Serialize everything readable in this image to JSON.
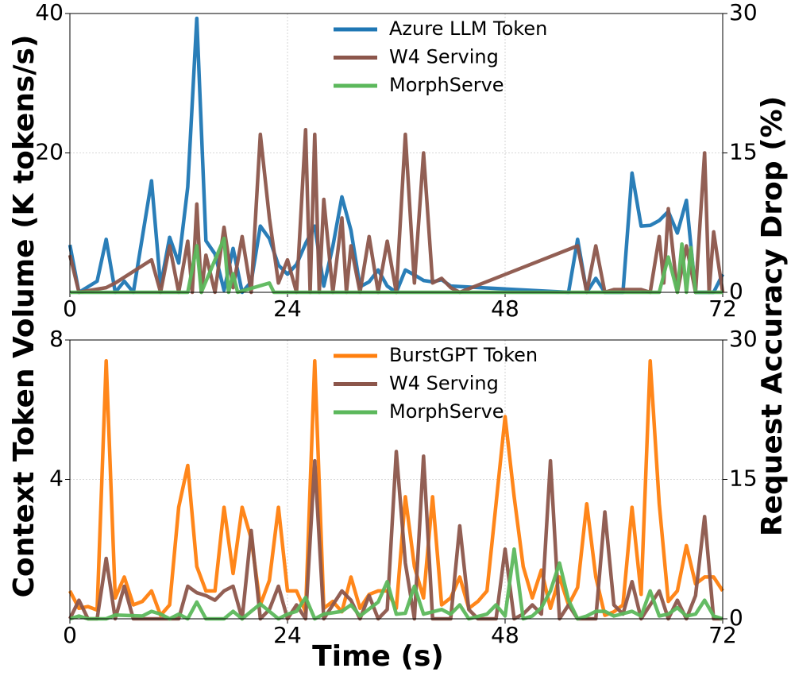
{
  "chart_data": [
    {
      "type": "line",
      "ylabel": "Context Token Volume (K tokens/s)",
      "y2label": "Request Accuracy Drop (%)",
      "xlim": [
        0,
        72
      ],
      "xticks": [
        0,
        24,
        48,
        72
      ],
      "ylim": [
        0,
        40
      ],
      "yticks": [
        20,
        40
      ],
      "y2lim": [
        0,
        30
      ],
      "y2ticks": [
        0,
        15,
        30
      ],
      "grid": true,
      "legend": "upper center",
      "series": [
        {
          "name": "Azure LLM Token",
          "color": "#1f77b4",
          "axis": "y",
          "x": [
            0,
            1,
            3,
            4,
            5,
            6,
            7,
            9,
            10,
            11,
            12,
            13,
            14,
            15,
            16,
            17,
            18,
            19,
            20,
            21,
            22,
            23,
            24,
            25,
            26,
            27,
            28,
            29,
            30,
            31,
            32,
            33,
            34,
            35,
            36,
            37,
            38,
            39,
            40,
            41,
            42,
            55,
            56,
            57,
            58,
            59,
            60,
            61,
            62,
            63,
            64,
            65,
            66,
            67,
            68,
            69,
            70,
            71,
            72
          ],
          "values": [
            6.8,
            0,
            1.6,
            7.6,
            0,
            1.6,
            0,
            16,
            0.9,
            7.9,
            4.2,
            15.1,
            39.3,
            7.4,
            5.5,
            0.3,
            6.3,
            0,
            1.5,
            9.5,
            7.7,
            3.9,
            2.6,
            4,
            7,
            9.5,
            0.9,
            6.6,
            13.7,
            8.9,
            0.8,
            1.5,
            3.2,
            0.9,
            0,
            3.2,
            2.5,
            1.7,
            1.5,
            1.8,
            0.9,
            0,
            7.6,
            0,
            2,
            0,
            0,
            0,
            17.1,
            9.5,
            9.6,
            10.3,
            11.6,
            8.5,
            13.2,
            0,
            0,
            0,
            2.6
          ]
        },
        {
          "name": "W4 Serving",
          "color": "#8c564b",
          "axis": "y2",
          "x": [
            0,
            1,
            4,
            5,
            9,
            10,
            11,
            12,
            13,
            13.5,
            14,
            14.5,
            15,
            16,
            17,
            18,
            19,
            20,
            21,
            22,
            23,
            24,
            25,
            26,
            26.5,
            27,
            27.5,
            28,
            29,
            30,
            30.5,
            31,
            32,
            33,
            34,
            35,
            36,
            37,
            38,
            39,
            40,
            41,
            42,
            43,
            56,
            57,
            58,
            59,
            60,
            63,
            64,
            65,
            65.5,
            66,
            67,
            68,
            69,
            70,
            70.5,
            71,
            72
          ],
          "values": [
            4,
            0,
            0.5,
            1,
            3.5,
            0,
            5,
            0,
            5.5,
            0,
            9.5,
            0,
            4,
            0,
            7,
            0.5,
            6,
            0,
            17,
            8,
            1,
            3.5,
            0,
            17.5,
            0,
            17,
            0,
            10,
            0,
            8,
            0,
            5,
            0,
            6,
            0,
            5.5,
            0,
            17,
            1,
            15,
            1,
            1.5,
            0.5,
            0,
            5,
            0,
            5,
            0,
            0.3,
            0.3,
            0,
            6,
            1,
            9,
            0,
            5,
            0,
            15,
            0,
            6.5,
            0
          ]
        },
        {
          "name": "MorphServe",
          "color": "#5cb85c",
          "axis": "y2",
          "x": [
            0,
            13,
            14,
            14.5,
            17,
            17.5,
            18,
            18.5,
            22,
            22.5,
            65,
            66,
            67,
            67.5,
            68,
            68.5,
            69,
            72
          ],
          "values": [
            0,
            0,
            5,
            0,
            5.8,
            0,
            2,
            0,
            1,
            0,
            0,
            3.8,
            0,
            5.2,
            0,
            4.8,
            0,
            0
          ]
        }
      ]
    },
    {
      "type": "line",
      "xlabel": "Time (s)",
      "xlim": [
        0,
        72
      ],
      "xticks": [
        0,
        24,
        48,
        72
      ],
      "ylim": [
        0,
        8
      ],
      "yticks": [
        4,
        8
      ],
      "y2lim": [
        0,
        30
      ],
      "y2ticks": [
        0,
        15,
        30
      ],
      "grid": true,
      "legend": "upper center",
      "series": [
        {
          "name": "BurstGPT Token",
          "color": "#ff7f0e",
          "axis": "y",
          "x": [
            0,
            1,
            2,
            3,
            4,
            5,
            6,
            7,
            8,
            9,
            10,
            11,
            12,
            13,
            14,
            15,
            16,
            17,
            18,
            19,
            20,
            21,
            22,
            23,
            24,
            25,
            26,
            27,
            28,
            29,
            30,
            31,
            32,
            33,
            34,
            35,
            36,
            37,
            38,
            39,
            40,
            41,
            42,
            43,
            44,
            45,
            46,
            47,
            48,
            49,
            50,
            51,
            52,
            53,
            54,
            55,
            56,
            57,
            58,
            59,
            60,
            61,
            62,
            63,
            64,
            65,
            66,
            67,
            68,
            69,
            70,
            71,
            72
          ],
          "values": [
            0.8,
            0.3,
            0.35,
            0.25,
            7.4,
            0.6,
            1.2,
            0.4,
            0.5,
            0.8,
            0.1,
            0.4,
            3.2,
            4.4,
            1.5,
            0.8,
            0.8,
            3.2,
            1.3,
            3.2,
            2.3,
            0.4,
            1.1,
            3.2,
            0.8,
            0.8,
            0.2,
            7.4,
            0.3,
            0.5,
            0.2,
            1.2,
            0.3,
            0.7,
            0.8,
            0.8,
            0.3,
            3.5,
            1.5,
            0.6,
            3.5,
            0.4,
            0.6,
            1.2,
            0.3,
            0.5,
            0.8,
            3.3,
            5.8,
            3.5,
            1.5,
            0.6,
            1.4,
            0.3,
            1.2,
            0.4,
            0.9,
            3.3,
            1.2,
            0.1,
            0.2,
            0.4,
            3.2,
            0.7,
            7.4,
            3.3,
            0.5,
            0.8,
            2.1,
            1,
            1.2,
            1.2,
            0.8
          ]
        },
        {
          "name": "W4 Serving",
          "color": "#8c564b",
          "axis": "y2",
          "x": [
            0,
            1,
            2,
            3,
            4,
            5,
            6,
            7,
            12,
            13,
            14,
            15,
            16,
            17,
            18,
            19,
            20,
            21,
            22,
            23,
            24,
            25,
            26,
            27,
            28,
            30,
            31,
            32,
            33,
            34,
            35,
            36,
            37,
            38,
            39,
            40,
            42,
            43,
            44,
            45,
            47,
            48,
            49,
            50,
            51,
            52,
            53,
            54,
            55,
            56,
            58,
            59,
            60,
            61,
            62,
            63,
            65,
            66,
            67,
            68,
            69,
            70,
            71,
            72
          ],
          "values": [
            0,
            2,
            0,
            0,
            6.5,
            0,
            3.5,
            0,
            0,
            3.5,
            2.8,
            2.5,
            2,
            3,
            3.5,
            0,
            9.5,
            0,
            1,
            3.5,
            0,
            1.5,
            0,
            17,
            0,
            3,
            2,
            0,
            2.5,
            0,
            1,
            18,
            6,
            0,
            17.5,
            0,
            0,
            10,
            1,
            0,
            0,
            7.5,
            0,
            0.5,
            1.5,
            0.5,
            17,
            0,
            1.5,
            0,
            0,
            11.5,
            1.5,
            0.5,
            4,
            0,
            3,
            0,
            2,
            0,
            2.5,
            11,
            0,
            0
          ]
        },
        {
          "name": "MorphServe",
          "color": "#5cb85c",
          "axis": "y2",
          "x": [
            0,
            1,
            2,
            4,
            5,
            8,
            9,
            10,
            11,
            12,
            13,
            14,
            15,
            17,
            18,
            19,
            20,
            21,
            22,
            23,
            24,
            25,
            26,
            27,
            28,
            30,
            31,
            32,
            34,
            35,
            36,
            37,
            38,
            39,
            41,
            42,
            43,
            44,
            46,
            47,
            48,
            49,
            50,
            51,
            52,
            53,
            54,
            55,
            56,
            57,
            58,
            59,
            60,
            62,
            63,
            64,
            65,
            66,
            67,
            68,
            69,
            70,
            71,
            72
          ],
          "values": [
            0,
            0.3,
            0,
            0,
            0.4,
            0.3,
            0.8,
            0.5,
            0,
            0.5,
            0,
            1.8,
            0,
            0,
            0.8,
            0,
            0.8,
            1.6,
            0.8,
            0,
            0.5,
            0.8,
            2.3,
            0,
            0.5,
            0.8,
            1.5,
            0.3,
            1.8,
            4,
            0.5,
            0.6,
            3.5,
            0.5,
            1,
            0.5,
            1.5,
            0,
            0.5,
            1.5,
            0.3,
            7.5,
            0,
            0.3,
            1.2,
            3,
            6,
            2,
            0,
            0.3,
            0.8,
            0.8,
            0.3,
            0.8,
            0.3,
            3,
            0.3,
            0.5,
            1.2,
            0.3,
            0.5,
            2,
            0.3,
            0
          ]
        }
      ]
    }
  ]
}
